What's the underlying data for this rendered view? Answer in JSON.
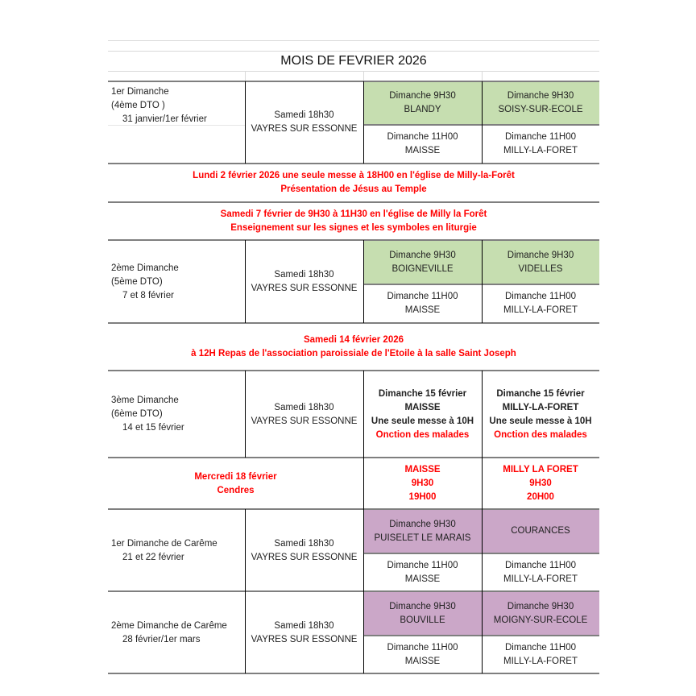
{
  "title": "MOIS DE FEVRIER 2026",
  "colors": {
    "green_cell": "#c6deb0",
    "purple_cell": "#cba7c8",
    "notice_red": "#ff0000"
  },
  "weeks": [
    {
      "label": [
        "1er Dimanche",
        "(4ème DTO )",
        "31 janvier/1er février"
      ],
      "saturday": [
        "Samedi 18h30",
        "VAYRES SUR ESSONNE"
      ],
      "mass930_a": [
        "Dimanche 9H30",
        "BLANDY"
      ],
      "mass930_b": [
        "Dimanche 9H30",
        "SOISY-SUR-ECOLE"
      ],
      "mass1100_a": [
        "Dimanche 11H00",
        "MAISSE"
      ],
      "mass1100_b": [
        "Dimanche 11H00",
        "MILLY-LA-FORET"
      ]
    },
    {
      "label": [
        "2ème Dimanche",
        "(5ème DTO)",
        "7 et 8 février"
      ],
      "saturday": [
        "Samedi 18h30",
        "VAYRES SUR ESSONNE"
      ],
      "mass930_a": [
        "Dimanche 9H30",
        "BOIGNEVILLE"
      ],
      "mass930_b": [
        "Dimanche 9H30",
        "VIDELLES"
      ],
      "mass1100_a": [
        "Dimanche 11H00",
        "MAISSE"
      ],
      "mass1100_b": [
        "Dimanche 11H00",
        "MILLY-LA-FORET"
      ]
    },
    {
      "label": [
        "3ème Dimanche",
        "(6ème DTO)",
        "14 et 15 février"
      ],
      "saturday": [
        "Samedi 18h30",
        "VAYRES SUR ESSONNE"
      ],
      "special_a": [
        "Dimanche 15 février",
        "MAISSE",
        "Une seule messe à 10H",
        "Onction des malades"
      ],
      "special_b": [
        "Dimanche 15 février",
        "MILLY-LA-FORET",
        "Une seule messe à 10H",
        "Onction des malades"
      ]
    },
    {
      "label": [
        "1er Dimanche de Carême",
        "21 et 22 février"
      ],
      "saturday": [
        "Samedi 18h30",
        "VAYRES SUR ESSONNE"
      ],
      "mass930_a": [
        "Dimanche 9H30",
        "PUISELET LE MARAIS"
      ],
      "mass930_b": [
        "COURANCES"
      ],
      "mass1100_a": [
        "Dimanche 11H00",
        "MAISSE"
      ],
      "mass1100_b": [
        "Dimanche 11H00",
        "MILLY-LA-FORET"
      ]
    },
    {
      "label": [
        "2ème Dimanche de Carême",
        "28 février/1er mars"
      ],
      "saturday": [
        "Samedi 18h30",
        "VAYRES SUR ESSONNE"
      ],
      "mass930_a": [
        "Dimanche 9H30",
        "BOUVILLE"
      ],
      "mass930_b": [
        "Dimanche 9H30",
        "MOIGNY-SUR-ECOLE"
      ],
      "mass1100_a": [
        "Dimanche 11H00",
        "MAISSE"
      ],
      "mass1100_b": [
        "Dimanche 11H00",
        "MILLY-LA-FORET"
      ]
    }
  ],
  "notices": [
    [
      "Lundi 2 février 2026 une seule messe à 18H00 en l'église de Milly-la-Forêt",
      "Présentation de Jésus au Temple"
    ],
    [
      "Samedi 7 février de 9H30 à 11H30 en l'église de Milly la Forêt",
      "Enseignement sur les signes et les symboles en liturgie"
    ],
    [
      "Samedi 14 février 2026",
      "à 12H Repas de l'association paroissiale de l'Etoile à la salle Saint Joseph"
    ]
  ],
  "ash_wednesday": {
    "label": [
      "Mercredi 18 février",
      "Cendres"
    ],
    "a": [
      "MAISSE",
      "9H30",
      "19H00"
    ],
    "b": [
      "MILLY LA FORET",
      "9H30",
      "20H00"
    ]
  }
}
